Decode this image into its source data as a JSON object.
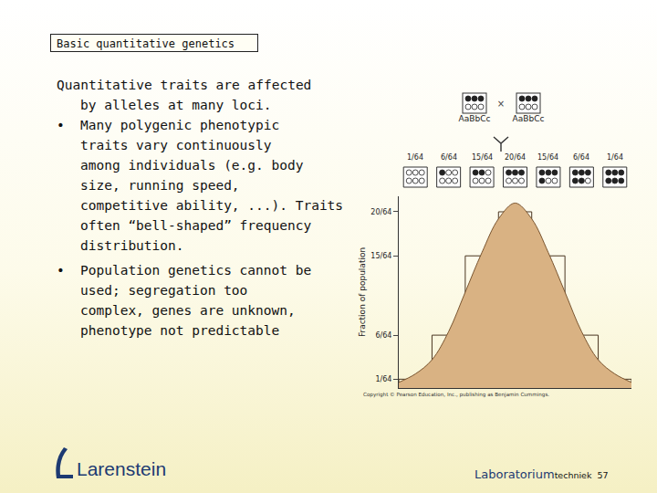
{
  "header": {
    "title": "Basic quantitative genetics"
  },
  "body": [
    {
      "lines": [
        "Quantitative traits are affected",
        "by alleles at many loci."
      ]
    },
    {
      "bullet": "•",
      "lines": [
        "Many polygenic phenotypic",
        "traits vary continuously",
        "among individuals (e.g. body",
        "size, running speed,",
        "competitive ability, ...). Traits",
        "often “bell-shaped” frequency",
        "distribution."
      ]
    },
    {
      "bullet": "•",
      "lines": [
        "Population genetics cannot be",
        "used; segregation too",
        "complex, genes are unknown,",
        "phenotype not predictable"
      ]
    }
  ],
  "chart_data": {
    "type": "bar",
    "parents": {
      "labels": [
        "AaBbCc",
        "AaBbCc"
      ],
      "cross": "×"
    },
    "y_label": "Fraction of population",
    "categories": [
      null,
      null,
      null,
      null,
      null,
      null,
      null
    ],
    "values": [
      0.015625,
      0.09375,
      0.234375,
      0.3125,
      0.234375,
      0.09375,
      0.015625
    ],
    "value_labels": [
      "1/64",
      "6/64",
      "15/64",
      "20/64",
      "15/64",
      "6/64",
      "1/64"
    ],
    "data_labels": true,
    "curve": {
      "type": "line",
      "color": "#d9b283",
      "x": [
        -0.5,
        0,
        0.5,
        1,
        1.5,
        2,
        2.5,
        3,
        3.5,
        4,
        4.5,
        5,
        5.5,
        6,
        6.5
      ],
      "values": [
        0.01,
        0.025,
        0.05,
        0.1,
        0.17,
        0.24,
        0.3,
        0.328,
        0.3,
        0.24,
        0.17,
        0.1,
        0.05,
        0.025,
        0.01
      ]
    },
    "xlim": [
      -0.5,
      6.5
    ],
    "ylim": [
      0,
      0.34
    ],
    "yticks": [
      {
        "value": 0.015625,
        "label": "1/64"
      },
      {
        "value": 0.09375,
        "label": "6/64"
      },
      {
        "value": 0.234375,
        "label": "15/64"
      },
      {
        "value": 0.3125,
        "label": "20/64"
      }
    ],
    "tick_labels": "y",
    "grid": false
  },
  "copyright": "Copyright © Pearson Education, Inc., publishing as Benjamin Cummings.",
  "footer": {
    "brand": "Larenstein",
    "course": "Laboratorium",
    "sub": "techniek",
    "page": 57
  }
}
